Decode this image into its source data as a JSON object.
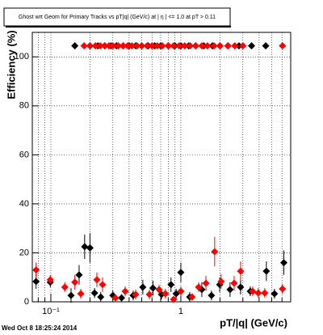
{
  "chart_data": {
    "type": "scatter",
    "title": "Ghost wrt Geom for Primary Tracks vs pT|q| (GeV/c) at |  η  | <= 1.0 at pT > 0.11",
    "x_label": "pT/|q| (GeV/c)",
    "y_label": "Efficiency (%)",
    "annotation": "Wed Oct  8 18:25:24 2014",
    "xlim": [
      0.072,
      7.0
    ],
    "ylim": [
      0,
      110
    ],
    "x_log": true,
    "grid": true,
    "xticks": [
      {
        "value": 0.1,
        "label": "10⁻¹"
      },
      1
    ],
    "xminor_ticks": [
      0.08,
      0.09,
      0.2,
      0.3,
      0.4,
      0.5,
      0.6,
      0.7,
      0.8,
      0.9,
      2,
      3,
      4,
      5,
      6,
      7
    ],
    "yticks": [
      0,
      20,
      40,
      60,
      80,
      100
    ],
    "series": [
      {
        "color": "#000000",
        "x": [
          0.077,
          0.099,
          0.143,
          0.165,
          0.182,
          0.2,
          0.217,
          0.242,
          0.3,
          0.35,
          0.43,
          0.51,
          0.61,
          0.71,
          0.84,
          0.92,
          1.0,
          1.17,
          1.45,
          1.72,
          1.99,
          2.39,
          2.88,
          3.42,
          4.55,
          5.25,
          6.2,
          0.153,
          0.2,
          0.23,
          0.26,
          0.29,
          0.32,
          0.36,
          0.4,
          0.45,
          0.5,
          0.56,
          0.63,
          0.7,
          0.8,
          0.9,
          1.0,
          1.15,
          1.3,
          1.5,
          1.75,
          2.0,
          2.3,
          2.8,
          3.5,
          4.5
        ],
        "values": [
          8.3,
          8,
          2.6,
          11,
          22.5,
          22,
          3.6,
          2,
          2.6,
          1.6,
          2.6,
          6,
          5.6,
          3,
          7,
          3.3,
          12,
          2,
          5,
          2.6,
          7,
          5,
          6,
          4.3,
          12.5,
          3.3,
          16,
          104.5,
          104.5,
          104.5,
          104.5,
          104.5,
          104.5,
          104.5,
          104.5,
          104.5,
          104.5,
          104.5,
          104.5,
          104.5,
          104.5,
          104.5,
          104.5,
          104.5,
          104.5,
          104.5,
          104.5,
          104.5,
          104.5,
          104.5,
          104.5,
          104.5
        ],
        "errors": [
          3,
          2,
          3,
          4,
          5,
          6,
          2,
          2,
          2,
          1.5,
          2,
          3,
          3,
          2,
          3,
          2,
          4,
          2,
          3,
          2,
          3,
          3,
          3,
          2,
          4,
          2,
          5,
          0,
          0,
          0,
          0,
          0,
          0,
          0,
          0,
          0,
          0,
          0,
          0,
          0,
          0,
          0,
          0,
          0,
          0,
          0,
          0,
          0,
          0,
          0,
          0,
          0
        ]
      },
      {
        "color": "#ff0000",
        "x": [
          0.077,
          0.099,
          0.128,
          0.153,
          0.17,
          0.226,
          0.25,
          0.314,
          0.373,
          0.449,
          0.573,
          0.68,
          0.76,
          0.88,
          1.0,
          1.22,
          1.37,
          1.56,
          1.82,
          2.04,
          2.57,
          2.88,
          3.57,
          3.94,
          4.42,
          6.05,
          0.18,
          0.2,
          0.22,
          0.24,
          0.26,
          0.28,
          0.3,
          0.33,
          0.36,
          0.39,
          0.42,
          0.46,
          0.5,
          0.55,
          0.6,
          0.66,
          0.72,
          0.8,
          0.88,
          0.97,
          1.07,
          1.18,
          1.3,
          1.45,
          1.6,
          1.8,
          2.0,
          2.3,
          2.6,
          3.0,
          6.05
        ],
        "values": [
          13,
          9,
          6,
          8,
          3.3,
          9,
          7,
          1.6,
          4.3,
          3,
          3,
          5,
          3.3,
          1,
          4.3,
          2,
          6,
          7.6,
          20.5,
          8.3,
          7.6,
          12.5,
          4.3,
          3.6,
          3.6,
          5.3,
          104.5,
          104.5,
          104.5,
          104.5,
          104.5,
          104.5,
          104.5,
          104.5,
          104.5,
          104.5,
          104.5,
          104.5,
          104.5,
          104.5,
          104.5,
          104.5,
          104.5,
          104.5,
          104.5,
          104.5,
          104.5,
          104.5,
          104.5,
          104.5,
          104.5,
          104.5,
          104.5,
          104.5,
          104.5,
          104.5,
          104.5
        ],
        "errors": [
          3,
          2,
          2,
          3,
          2,
          3,
          3,
          1.5,
          2,
          2,
          2,
          2,
          2,
          1,
          2,
          1.5,
          2,
          3,
          6,
          3,
          3,
          4,
          2,
          2,
          2,
          2,
          0,
          0,
          0,
          0,
          0,
          0,
          0,
          0,
          0,
          0,
          0,
          0,
          0,
          0,
          0,
          0,
          0,
          0,
          0,
          0,
          0,
          0,
          0,
          0,
          0,
          0,
          0,
          0,
          0,
          0,
          0
        ]
      }
    ]
  }
}
